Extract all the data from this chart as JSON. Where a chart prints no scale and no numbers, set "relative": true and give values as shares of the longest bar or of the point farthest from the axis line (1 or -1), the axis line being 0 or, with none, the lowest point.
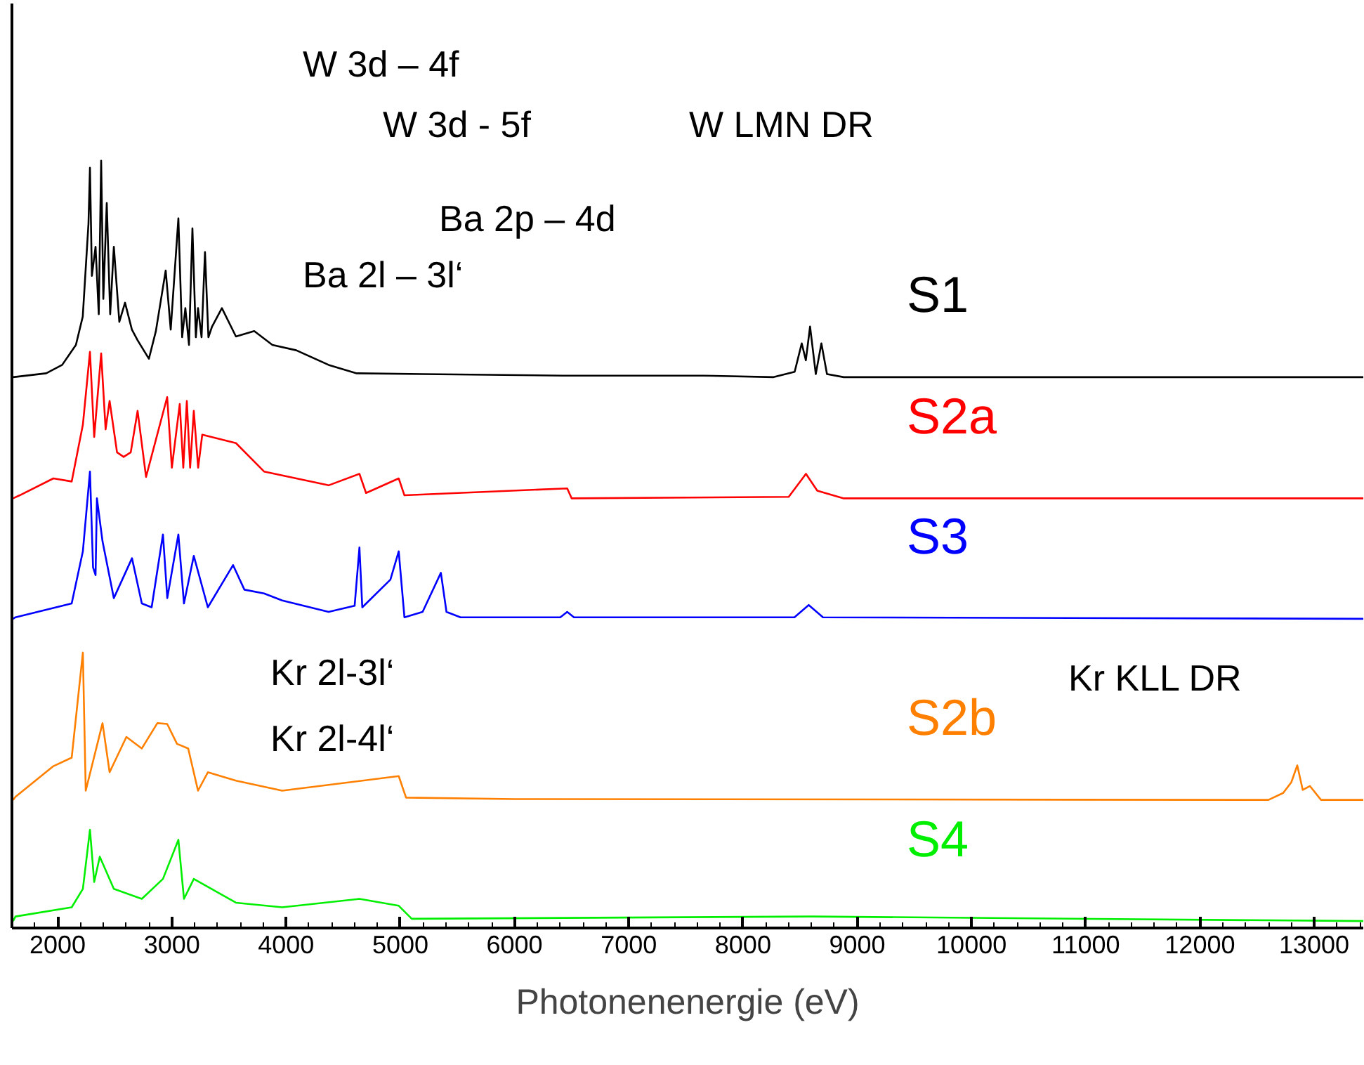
{
  "chart_data": {
    "type": "line",
    "relative": true,
    "xlabel": "Photonenenergie (eV)",
    "xlim": [
      1600,
      13430
    ],
    "xticks": [
      2000,
      3000,
      4000,
      5000,
      6000,
      7000,
      8000,
      9000,
      10000,
      11000,
      12000,
      13000
    ],
    "tick_labels": "x",
    "annotations": [
      "W 3d – 4f",
      "W 3d - 5f",
      "W LMN DR",
      "Ba 2p – 4d",
      "Ba 2l – 3l‘",
      "Kr 2l-3l‘",
      "Kr 2l-4l‘",
      "Kr KLL DR"
    ],
    "series": [
      {
        "name": "S1",
        "color": "#000000",
        "x": [
          1610,
          1900,
          2040,
          2160,
          2220,
          2270,
          2283,
          2300,
          2332,
          2360,
          2381,
          2400,
          2430,
          2460,
          2492,
          2540,
          2590,
          2650,
          2700,
          2799,
          2860,
          2946,
          2990,
          3057,
          3090,
          3118,
          3150,
          3180,
          3210,
          3229,
          3260,
          3290,
          3320,
          3352,
          3438,
          3561,
          3721,
          3880,
          4089,
          4372,
          4618,
          5195,
          6424,
          7653,
          8268,
          8452,
          8514,
          8550,
          8587,
          8637,
          8686,
          8735,
          8882,
          10111,
          13430
        ],
        "values": [
          0.718,
          0.723,
          0.734,
          0.76,
          0.797,
          0.918,
          0.991,
          0.85,
          0.888,
          0.8,
          1.0,
          0.82,
          0.945,
          0.8,
          0.888,
          0.79,
          0.815,
          0.78,
          0.766,
          0.742,
          0.778,
          0.857,
          0.78,
          0.925,
          0.77,
          0.808,
          0.76,
          0.912,
          0.77,
          0.808,
          0.77,
          0.881,
          0.77,
          0.784,
          0.808,
          0.771,
          0.778,
          0.76,
          0.753,
          0.734,
          0.723,
          0.722,
          0.72,
          0.72,
          0.718,
          0.725,
          0.762,
          0.74,
          0.784,
          0.722,
          0.762,
          0.722,
          0.718,
          0.718,
          0.718
        ]
      },
      {
        "name": "S2a",
        "color": "#ff0000",
        "x": [
          1610,
          1668,
          1963,
          2123,
          2221,
          2283,
          2320,
          2381,
          2420,
          2455,
          2520,
          2578,
          2640,
          2700,
          2774,
          2959,
          3000,
          3069,
          3100,
          3131,
          3160,
          3192,
          3230,
          3266,
          3561,
          3807,
          4372,
          4642,
          4700,
          4986,
          5036,
          6461,
          6500,
          8400,
          8551,
          8650,
          8882,
          13430
        ],
        "values": [
          0.56,
          0.564,
          0.586,
          0.582,
          0.656,
          0.751,
          0.64,
          0.749,
          0.65,
          0.687,
          0.62,
          0.614,
          0.62,
          0.674,
          0.588,
          0.692,
          0.6,
          0.683,
          0.6,
          0.687,
          0.6,
          0.674,
          0.6,
          0.643,
          0.632,
          0.595,
          0.577,
          0.592,
          0.567,
          0.586,
          0.564,
          0.573,
          0.56,
          0.562,
          0.592,
          0.57,
          0.56,
          0.56
        ]
      },
      {
        "name": "S3",
        "color": "#0000ff",
        "x": [
          1610,
          1631,
          2123,
          2221,
          2283,
          2310,
          2332,
          2344,
          2393,
          2492,
          2651,
          2737,
          2823,
          2922,
          2960,
          3057,
          3106,
          3192,
          3315,
          3536,
          3635,
          3807,
          3966,
          4372,
          4600,
          4642,
          4667,
          4913,
          4986,
          5036,
          5195,
          5355,
          5404,
          5527,
          6400,
          6461,
          6520,
          8450,
          8575,
          8700,
          13430
        ],
        "values": [
          0.403,
          0.405,
          0.423,
          0.491,
          0.595,
          0.47,
          0.46,
          0.56,
          0.504,
          0.43,
          0.482,
          0.423,
          0.418,
          0.513,
          0.43,
          0.513,
          0.423,
          0.485,
          0.418,
          0.473,
          0.441,
          0.436,
          0.427,
          0.412,
          0.42,
          0.496,
          0.418,
          0.454,
          0.491,
          0.405,
          0.412,
          0.463,
          0.412,
          0.405,
          0.405,
          0.412,
          0.405,
          0.405,
          0.421,
          0.405,
          0.403
        ]
      },
      {
        "name": "S2b",
        "color": "#ff8000",
        "x": [
          1610,
          1631,
          1963,
          2123,
          2221,
          2246,
          2393,
          2455,
          2602,
          2737,
          2873,
          2959,
          3045,
          3143,
          3229,
          3315,
          3561,
          3966,
          4986,
          5050,
          6000,
          12600,
          12729,
          12800,
          12852,
          12900,
          12963,
          13060,
          13430
        ],
        "values": [
          0.167,
          0.171,
          0.211,
          0.222,
          0.359,
          0.179,
          0.267,
          0.203,
          0.249,
          0.234,
          0.267,
          0.266,
          0.24,
          0.234,
          0.179,
          0.203,
          0.192,
          0.179,
          0.198,
          0.17,
          0.168,
          0.167,
          0.176,
          0.19,
          0.212,
          0.18,
          0.185,
          0.167,
          0.167
        ]
      },
      {
        "name": "S4",
        "color": "#00ee00",
        "x": [
          1610,
          1631,
          2123,
          2221,
          2283,
          2320,
          2369,
          2492,
          2737,
          2922,
          3057,
          3106,
          3192,
          3561,
          3966,
          4642,
          4986,
          5100,
          8600,
          13430
        ],
        "values": [
          0.009,
          0.015,
          0.027,
          0.051,
          0.128,
          0.06,
          0.093,
          0.051,
          0.038,
          0.064,
          0.115,
          0.038,
          0.064,
          0.033,
          0.027,
          0.038,
          0.029,
          0.012,
          0.015,
          0.009
        ]
      }
    ]
  }
}
